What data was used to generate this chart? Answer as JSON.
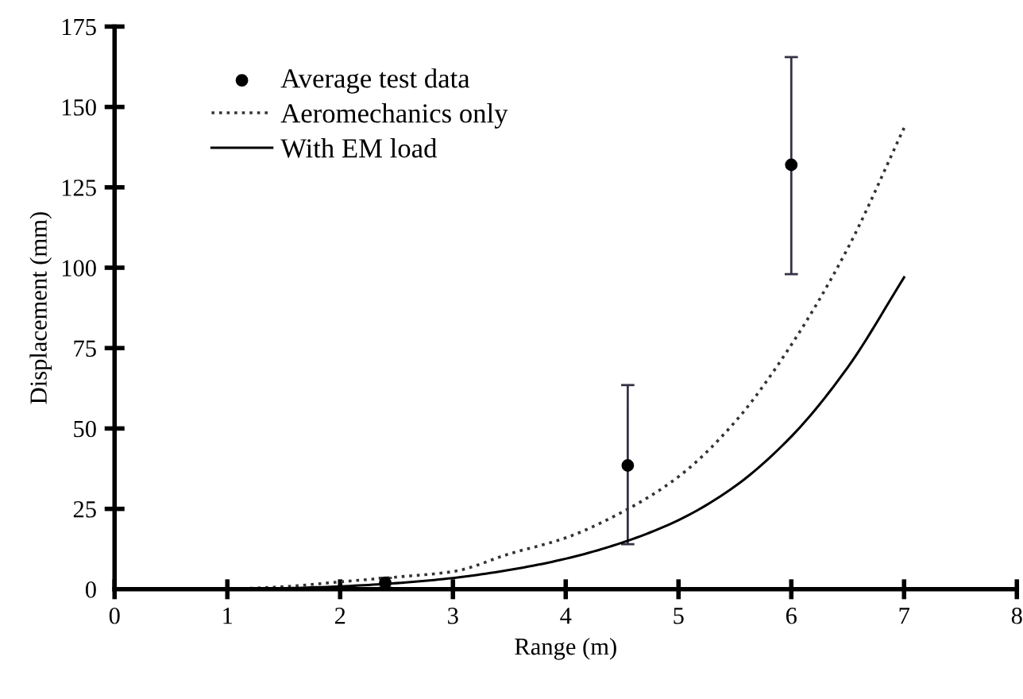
{
  "chart_data": {
    "type": "line",
    "xlabel": "Range (m)",
    "ylabel": "Displacement (mm)",
    "xlim": [
      0,
      8
    ],
    "ylim": [
      0,
      175
    ],
    "xticks": [
      0,
      1,
      2,
      3,
      4,
      5,
      6,
      7,
      8
    ],
    "yticks": [
      0,
      25,
      50,
      75,
      100,
      125,
      150,
      175
    ],
    "grid": false,
    "legend": "top left",
    "series": [
      {
        "name": "Average test data",
        "type": "scatter",
        "color": "#000000",
        "marker": "circle",
        "x": [
          2.4,
          4.55,
          6.0
        ],
        "values": [
          2,
          38.5,
          132
        ],
        "errors": [
          [
            0.5,
            3.5
          ],
          [
            14,
            63.5
          ],
          [
            98,
            165.5
          ]
        ]
      },
      {
        "name": "Aeromechanics only",
        "color": "#333333",
        "line_style": "dotted",
        "marker": "none",
        "x": [
          1,
          1.5,
          2,
          2.5,
          3,
          3.5,
          4,
          4.5,
          5,
          5.5,
          6,
          6.5,
          7
        ],
        "values": [
          0,
          0.8,
          2.3,
          3.8,
          5.5,
          11,
          16,
          24,
          35,
          52,
          76,
          106,
          143.5
        ]
      },
      {
        "name": "With EM load",
        "color": "#000000",
        "line_style": "solid",
        "marker": "none",
        "x": [
          1,
          1.5,
          2,
          2.5,
          3,
          3.5,
          4,
          4.5,
          5,
          5.5,
          6,
          6.5,
          7
        ],
        "values": [
          0,
          0.3,
          0.9,
          1.9,
          3.5,
          6,
          9.5,
          14.5,
          21.5,
          32,
          47.5,
          69,
          97
        ]
      }
    ]
  }
}
